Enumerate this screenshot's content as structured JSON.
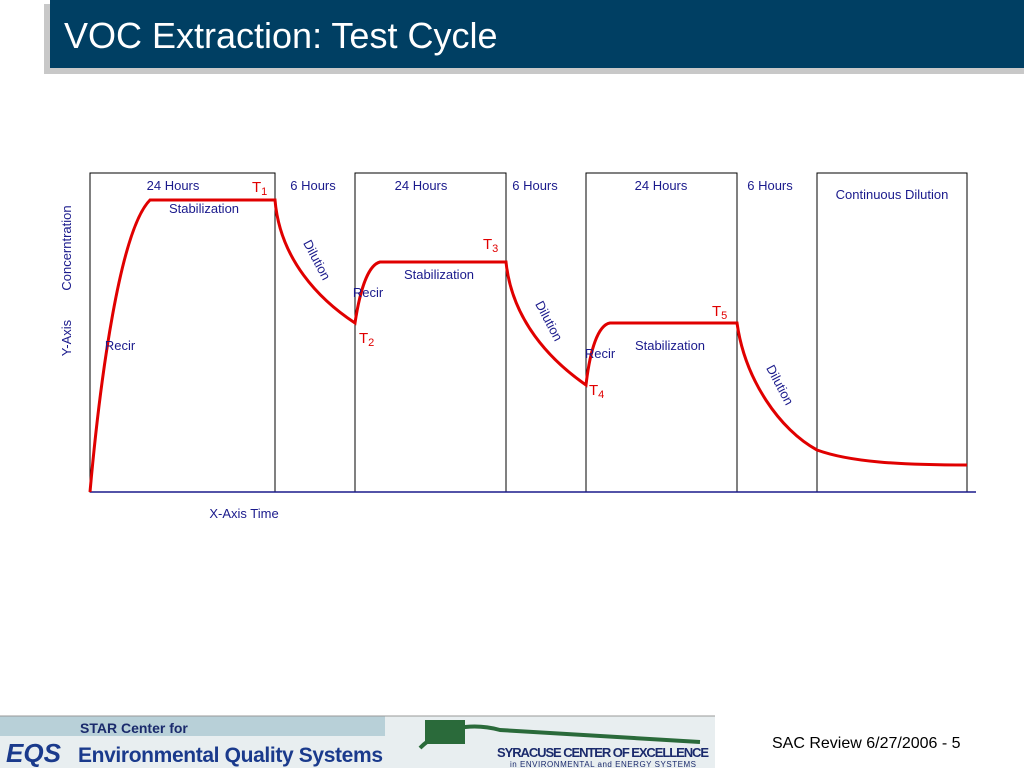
{
  "header": {
    "title": "VOC Extraction: Test Cycle"
  },
  "diagram": {
    "periods": [
      "24 Hours",
      "6 Hours",
      "24 Hours",
      "6 Hours",
      "24 Hours",
      "6 Hours",
      "Continuous Dilution"
    ],
    "phases": [
      "Recir",
      "Stabilization",
      "Dilution",
      "Recir",
      "Stabilization",
      "Dilution",
      "Recir",
      "Stabilization",
      "Dilution"
    ],
    "time_points": [
      {
        "letter": "T",
        "subscript": "1"
      },
      {
        "letter": "T",
        "subscript": "2"
      },
      {
        "letter": "T",
        "subscript": "3"
      },
      {
        "letter": "T",
        "subscript": "4"
      },
      {
        "letter": "T",
        "subscript": "5"
      }
    ],
    "y_axis": [
      "Y-Axis",
      "Concerntration"
    ],
    "x_axis": "X-Axis Time"
  },
  "footer": {
    "logo_star": "STAR Center for",
    "logo_eqs": "EQS",
    "logo_eqs_name": "Environmental Quality Systems",
    "logo_syracuse": "SYRACUSE CENTER OF EXCELLENCE",
    "logo_syracuse_sub": "in ENVIRONMENTAL and ENERGY SYSTEMS",
    "slide_info": "SAC Review 6/27/2006 - 5"
  }
}
